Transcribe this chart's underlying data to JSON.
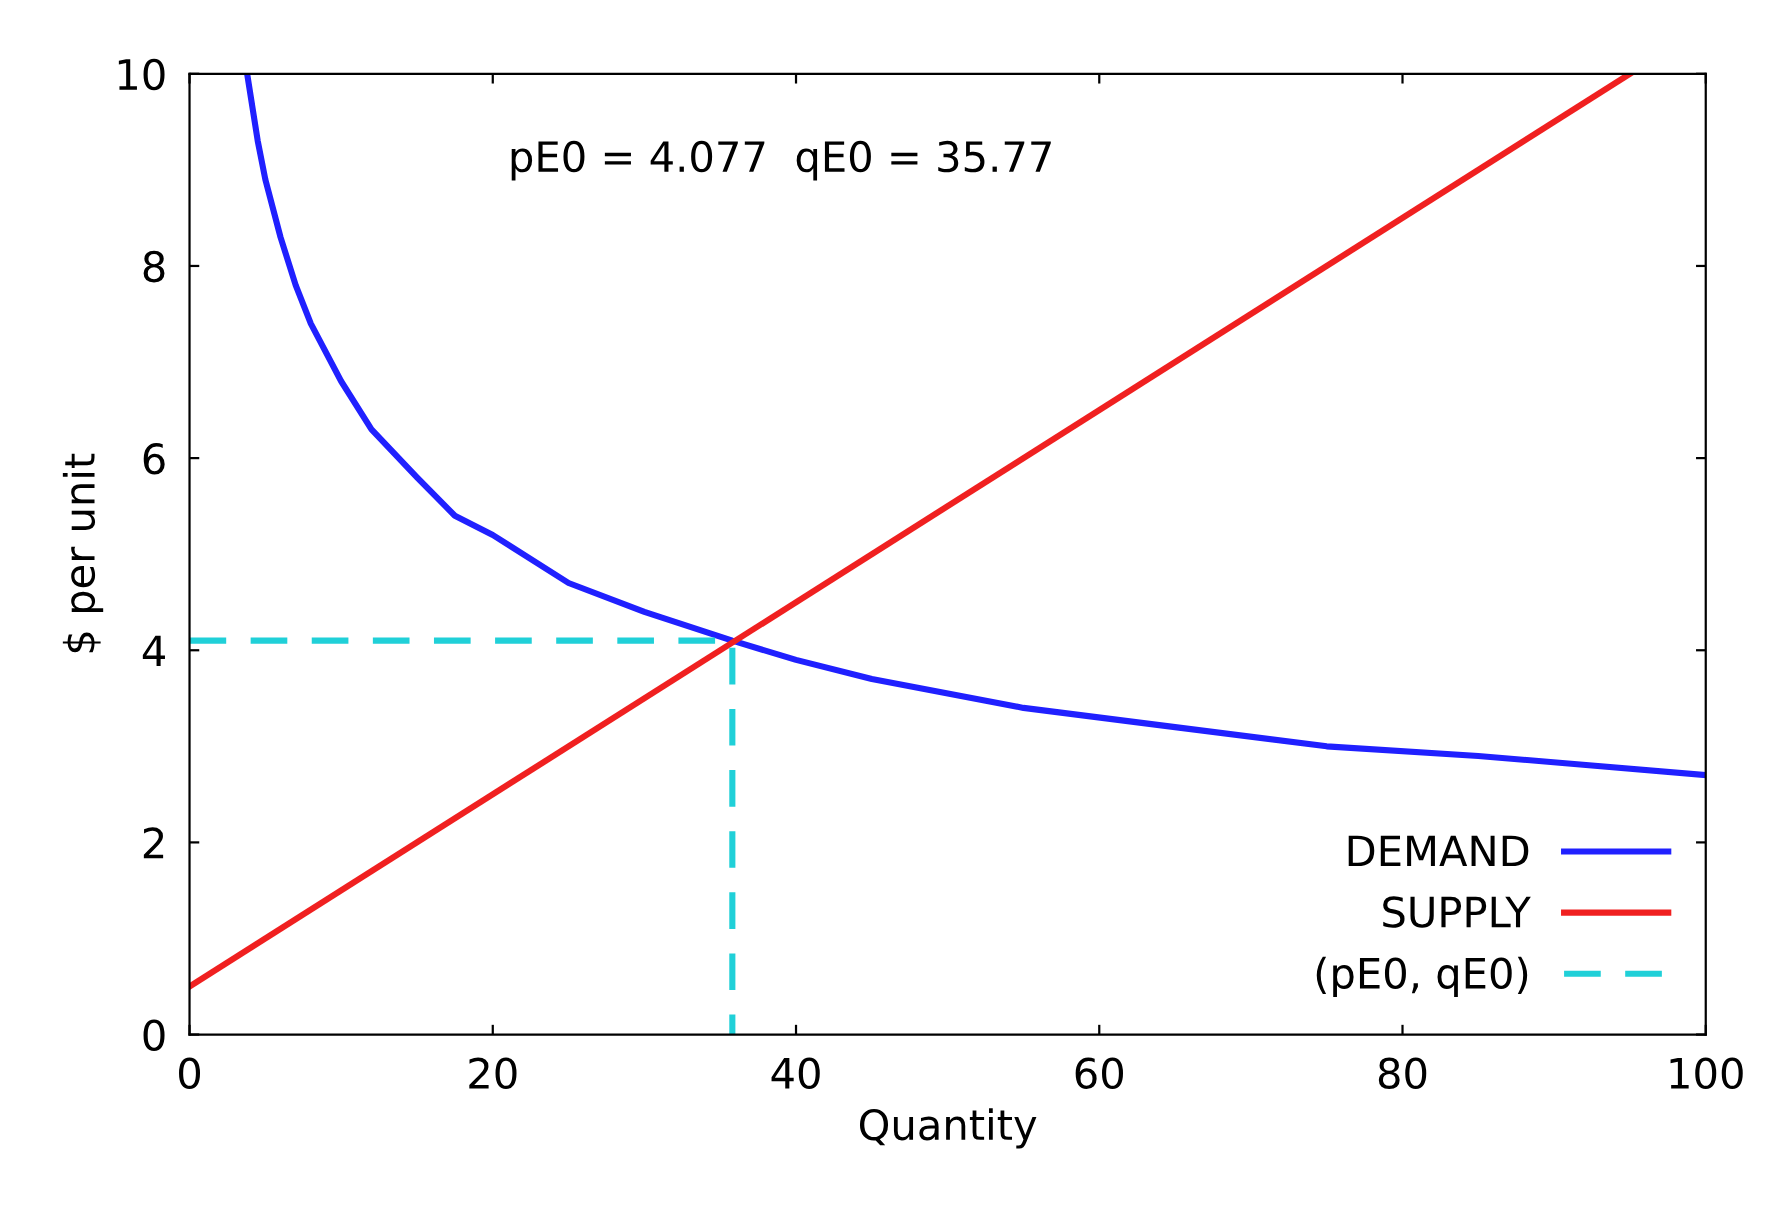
{
  "chart_data": {
    "type": "line",
    "xlabel": "Quantity",
    "ylabel": "$ per unit",
    "xlim": [
      0,
      100
    ],
    "xticks": [
      0,
      20,
      40,
      60,
      80,
      100
    ],
    "ylim": [
      0,
      10
    ],
    "yticks": [
      0,
      2,
      4,
      6,
      8,
      10
    ],
    "grid": false,
    "legend": "bottom right",
    "marker": "none",
    "annotations": [
      "pE0 = 4.077  qE0 = 35.77"
    ],
    "series": [
      {
        "name": "DEMAND",
        "color": "#2020ff",
        "line_style": "solid",
        "x": [
          3.8,
          4.5,
          5,
          6,
          7,
          8,
          10,
          12,
          15,
          17.5,
          20,
          25,
          30,
          35.8,
          40,
          45,
          55,
          65,
          75,
          85,
          100
        ],
        "values": [
          10.0,
          9.3,
          8.9,
          8.3,
          7.8,
          7.4,
          6.8,
          6.3,
          5.8,
          5.4,
          5.2,
          4.7,
          4.4,
          4.1,
          3.9,
          3.7,
          3.4,
          3.2,
          3.0,
          2.9,
          2.7
        ]
      },
      {
        "name": "SUPPLY",
        "color": "#f02020",
        "line_style": "solid",
        "x": [
          0,
          95
        ],
        "values": [
          0.5,
          10
        ]
      },
      {
        "name": "(pE0, qE0)",
        "color": "#20d0d8",
        "line_style": "dashed",
        "x": [
          0,
          35.8,
          35.8
        ],
        "values": [
          4.1,
          4.1,
          0
        ]
      }
    ]
  }
}
